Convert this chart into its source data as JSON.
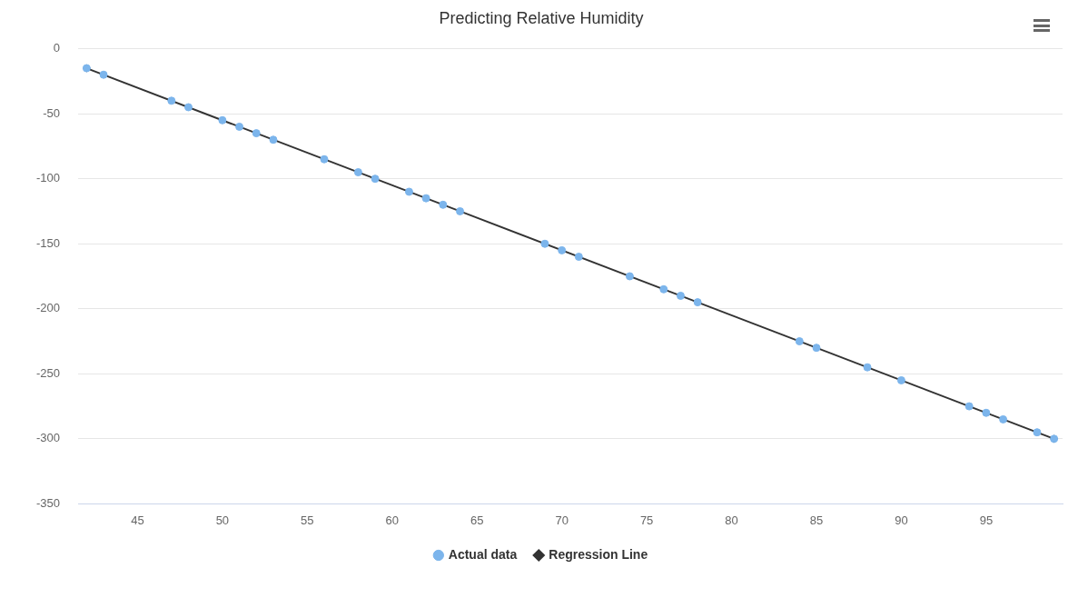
{
  "chart_data": {
    "type": "scatter",
    "title": "Predicting Relative Humidity",
    "xlim": [
      41.5,
      99.5
    ],
    "xticks": [
      45,
      50,
      55,
      60,
      65,
      70,
      75,
      80,
      85,
      90,
      95
    ],
    "ylim": [
      -350,
      0
    ],
    "yticks": [
      -350,
      -300,
      -250,
      -200,
      -150,
      -100,
      -50,
      0
    ],
    "grid": "y",
    "legend": "bottom",
    "series": [
      {
        "name": "Actual data",
        "marker": "circle",
        "color": "#7cb5ec",
        "x": [
          42,
          43,
          47,
          48,
          50,
          51,
          52,
          53,
          56,
          58,
          59,
          61,
          62,
          63,
          64,
          69,
          70,
          71,
          74,
          76,
          77,
          78,
          84,
          85,
          88,
          90,
          94,
          95,
          96,
          98,
          99
        ],
        "values": [
          -15,
          -20,
          -40,
          -45,
          -55,
          -60,
          -65,
          -70,
          -85,
          -95,
          -100,
          -110,
          -115,
          -120,
          -125,
          -150,
          -155,
          -160,
          -175,
          -185,
          -190,
          -195,
          -225,
          -230,
          -245,
          -255,
          -275,
          -280,
          -285,
          -295,
          -300
        ]
      },
      {
        "name": "Regression Line",
        "type": "line",
        "marker": "diamond",
        "color": "#333333",
        "x": [
          42,
          99
        ],
        "values": [
          -15,
          -300
        ]
      }
    ]
  }
}
